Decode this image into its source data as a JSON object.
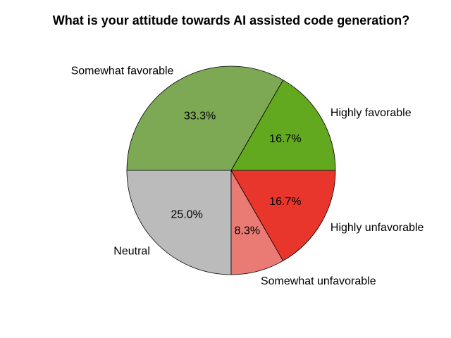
{
  "chart_data": {
    "type": "pie",
    "title": "What is your attitude towards AI assisted code generation?",
    "start_angle_deg": 0,
    "direction": "counterclockwise",
    "edge_color": "#000000",
    "slices": [
      {
        "label": "Highly favorable",
        "value": 16.7,
        "value_label": "16.7%",
        "color": "#62a920"
      },
      {
        "label": "Somewhat favorable",
        "value": 33.3,
        "value_label": "33.3%",
        "color": "#7da854"
      },
      {
        "label": "Neutral",
        "value": 25.0,
        "value_label": "25.0%",
        "color": "#bbbbbb"
      },
      {
        "label": "Somewhat unfavorable",
        "value": 8.3,
        "value_label": "8.3%",
        "color": "#e97b74"
      },
      {
        "label": "Highly unfavorable",
        "value": 16.7,
        "value_label": "16.7%",
        "color": "#e9362d"
      }
    ]
  }
}
